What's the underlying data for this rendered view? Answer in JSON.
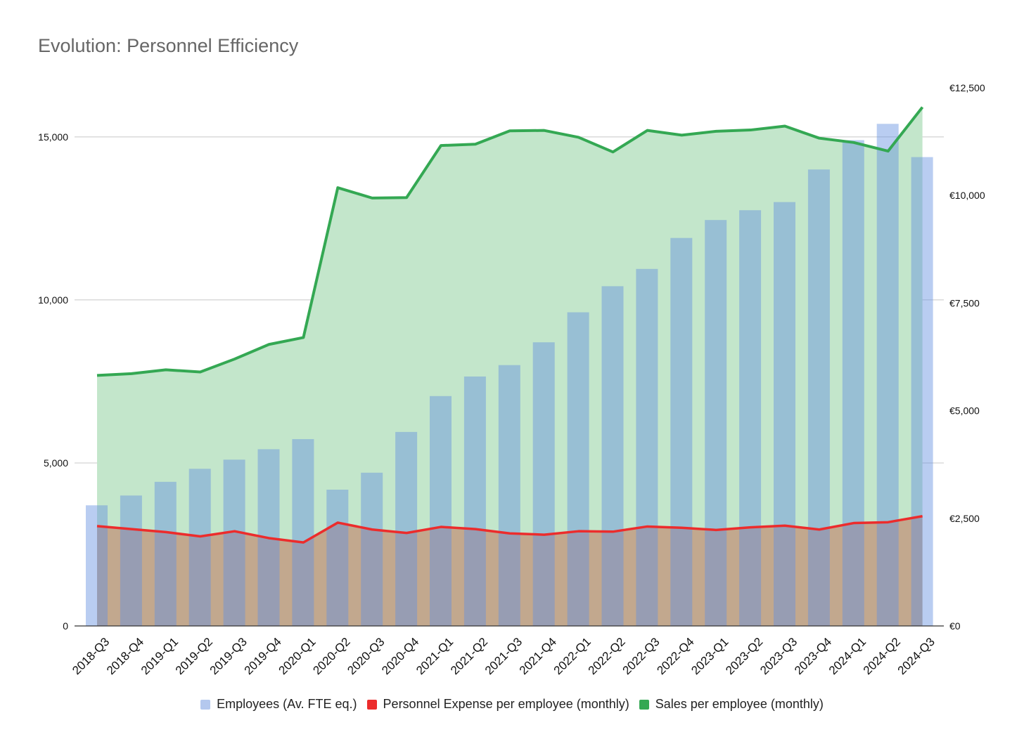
{
  "title": "Evolution: Personnel Efficiency",
  "chart_data": {
    "type": "bar",
    "title": "Evolution: Personnel Efficiency",
    "categories": [
      "2018-Q3",
      "2018-Q4",
      "2019-Q1",
      "2019-Q2",
      "2019-Q3",
      "2019-Q4",
      "2020-Q1",
      "2020-Q2",
      "2020-Q3",
      "2020-Q4",
      "2021-Q1",
      "2021-Q2",
      "2021-Q3",
      "2021-Q4",
      "2022-Q1",
      "2022-Q2",
      "2022-Q3",
      "2022-Q4",
      "2023-Q1",
      "2023-Q2",
      "2023-Q3",
      "2023-Q4",
      "2024-Q1",
      "2024-Q2",
      "2024-Q3"
    ],
    "left_axis": {
      "ylim": [
        0,
        17000
      ],
      "ticks": [
        0,
        5000,
        10000,
        15000
      ],
      "tick_labels": [
        "0",
        "5,000",
        "10,000",
        "15,000"
      ],
      "grid": true
    },
    "right_axis": {
      "ylim": [
        0,
        12500
      ],
      "ticks": [
        0,
        2500,
        5000,
        7500,
        10000,
        12500
      ],
      "tick_labels": [
        "€0",
        "€2,500",
        "€5,000",
        "€7,500",
        "€10,000",
        "€12,500"
      ]
    },
    "series": [
      {
        "name": "Employees (Av. FTE eq.)",
        "type": "bar",
        "axis": "left",
        "color": "#a4bdeb",
        "values": [
          3700,
          4000,
          4420,
          4820,
          5100,
          5420,
          5730,
          4180,
          4700,
          5950,
          7050,
          7650,
          8000,
          8700,
          9620,
          10420,
          10950,
          11900,
          12450,
          12750,
          13000,
          14000,
          14900,
          15400,
          14380
        ]
      },
      {
        "name": "Personnel Expense per employee (monthly)",
        "type": "line",
        "axis": "right",
        "color": "#ec2c2c",
        "values": [
          2320,
          2250,
          2180,
          2080,
          2200,
          2040,
          1940,
          2400,
          2240,
          2160,
          2300,
          2250,
          2150,
          2120,
          2200,
          2190,
          2310,
          2280,
          2230,
          2290,
          2330,
          2240,
          2390,
          2410,
          2550
        ]
      },
      {
        "name": "Sales per employee (monthly)",
        "type": "area",
        "axis": "right",
        "color": "#34a853",
        "values": [
          5820,
          5860,
          5950,
          5900,
          6200,
          6540,
          6700,
          10180,
          9940,
          9950,
          11160,
          11190,
          11500,
          11510,
          11350,
          11010,
          11510,
          11400,
          11490,
          11520,
          11610,
          11330,
          11230,
          11030,
          12050
        ]
      }
    ]
  },
  "legend": {
    "employees": "Employees (Av. FTE eq.)",
    "expense": "Personnel Expense per employee (monthly)",
    "sales": "Sales per employee (monthly)"
  },
  "colors": {
    "employees": "#b4c8ee",
    "expense": "#ec2c2c",
    "sales": "#34a853"
  }
}
